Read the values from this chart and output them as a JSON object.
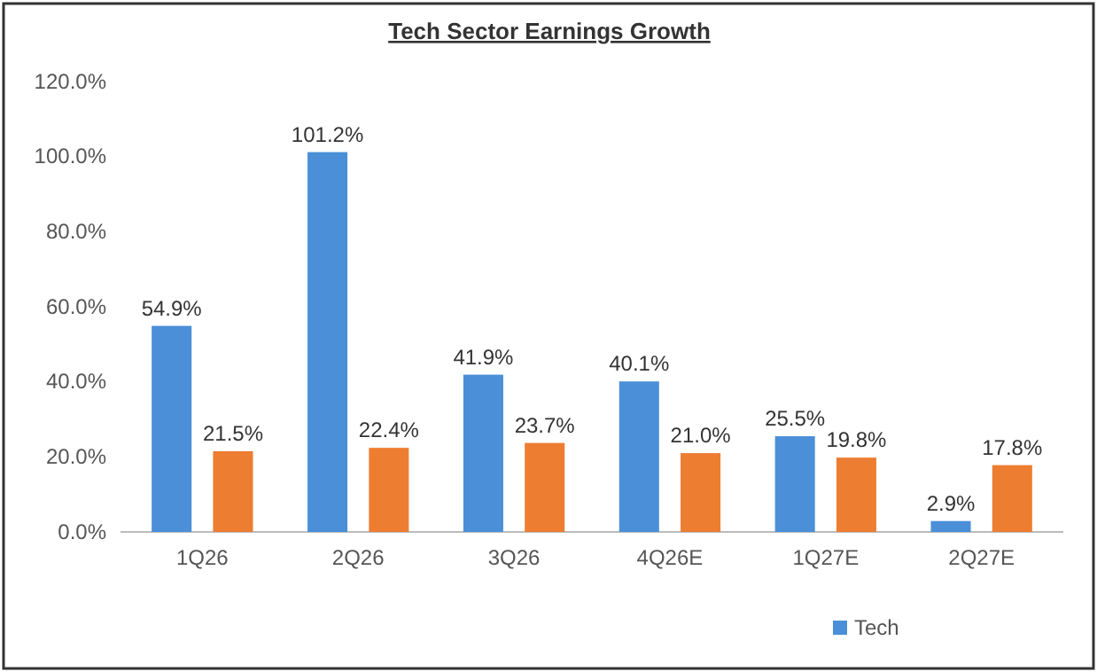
{
  "chart_data": {
    "type": "bar",
    "title": "Tech Sector Earnings Growth",
    "categories": [
      "1Q26",
      "2Q26",
      "3Q26",
      "4Q26E",
      "1Q27E",
      "2Q27E"
    ],
    "series": [
      {
        "name": "Tech",
        "color": "#4a8fd8",
        "values": [
          54.9,
          101.2,
          41.9,
          40.1,
          25.5,
          2.9
        ],
        "value_labels": [
          "54.9%",
          "101.2%",
          "41.9%",
          "40.1%",
          "25.5%",
          "2.9%"
        ]
      },
      {
        "color": "#ed7d31",
        "values": [
          21.5,
          22.4,
          23.7,
          21.0,
          19.8,
          17.8
        ],
        "value_labels": [
          "21.5%",
          "22.4%",
          "23.7%",
          "21.0%",
          "19.8%",
          "17.8%"
        ]
      }
    ],
    "ylim": [
      0,
      120
    ],
    "yticks": [
      {
        "value": 0,
        "label": "0.0%"
      },
      {
        "value": 20,
        "label": "20.0%"
      },
      {
        "value": 40,
        "label": "40.0%"
      },
      {
        "value": 60,
        "label": "60.0%"
      },
      {
        "value": 80,
        "label": "80.0%"
      },
      {
        "value": 100,
        "label": "100.0%"
      },
      {
        "value": 120,
        "label": "120.0%"
      }
    ],
    "legend": "bottom right"
  }
}
